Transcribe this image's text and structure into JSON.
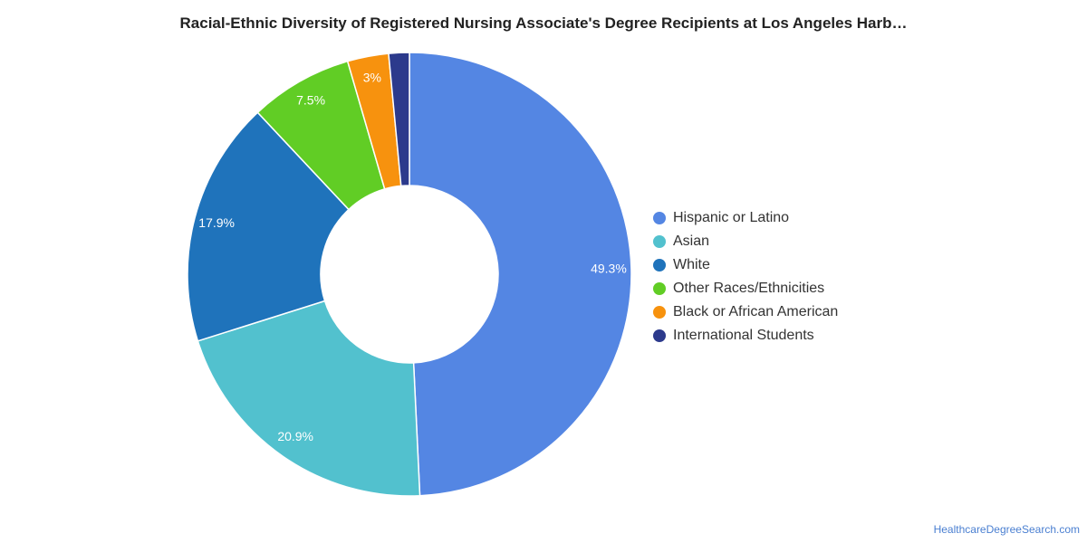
{
  "title": "Racial-Ethnic Diversity of Registered Nursing Associate's Degree Recipients at Los Angeles Harb…",
  "footer": "HealthcareDegreeSearch.com",
  "chart_data": {
    "type": "pie",
    "variant": "donut",
    "labels": [
      "Hispanic or Latino",
      "Asian",
      "White",
      "Other Races/Ethnicities",
      "Black or African American",
      "International Students"
    ],
    "values": [
      49.3,
      20.9,
      17.9,
      7.5,
      3.0,
      1.5
    ],
    "data_labels": [
      "49.3%",
      "20.9%",
      "17.9%",
      "7.5%",
      "3%",
      ""
    ],
    "colors": [
      "#5486e3",
      "#52c1ce",
      "#1f73bb",
      "#61cd25",
      "#f7920e",
      "#2c3a8c"
    ],
    "legend_position": "right"
  }
}
